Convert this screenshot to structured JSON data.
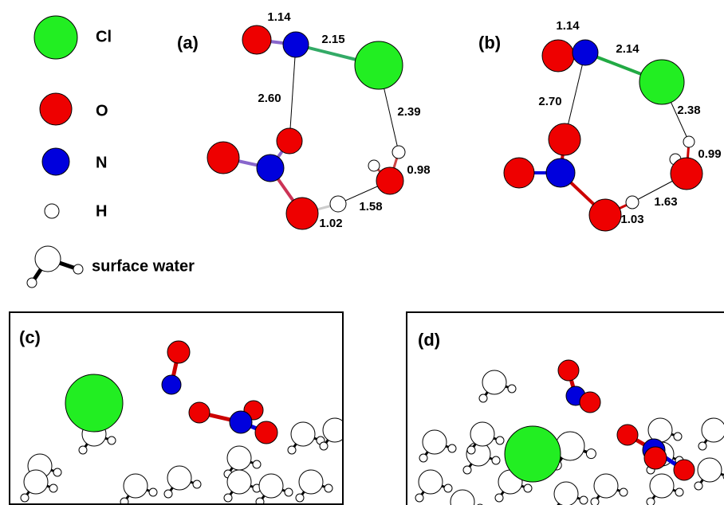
{
  "legend": [
    {
      "label": "Cl"
    },
    {
      "label": "O"
    },
    {
      "label": "N"
    },
    {
      "label": "H"
    },
    {
      "label": "surface water"
    }
  ],
  "panels": [
    {
      "label": "(a)",
      "distances": [
        "1.14",
        "2.15",
        "2.60",
        "2.39",
        "0.98",
        "1.58",
        "1.02"
      ]
    },
    {
      "label": "(b)",
      "distances": [
        "1.14",
        "2.14",
        "2.70",
        "2.38",
        "0.99",
        "1.63",
        "1.03"
      ]
    },
    {
      "label": "(c)"
    },
    {
      "label": "(d)"
    }
  ]
}
